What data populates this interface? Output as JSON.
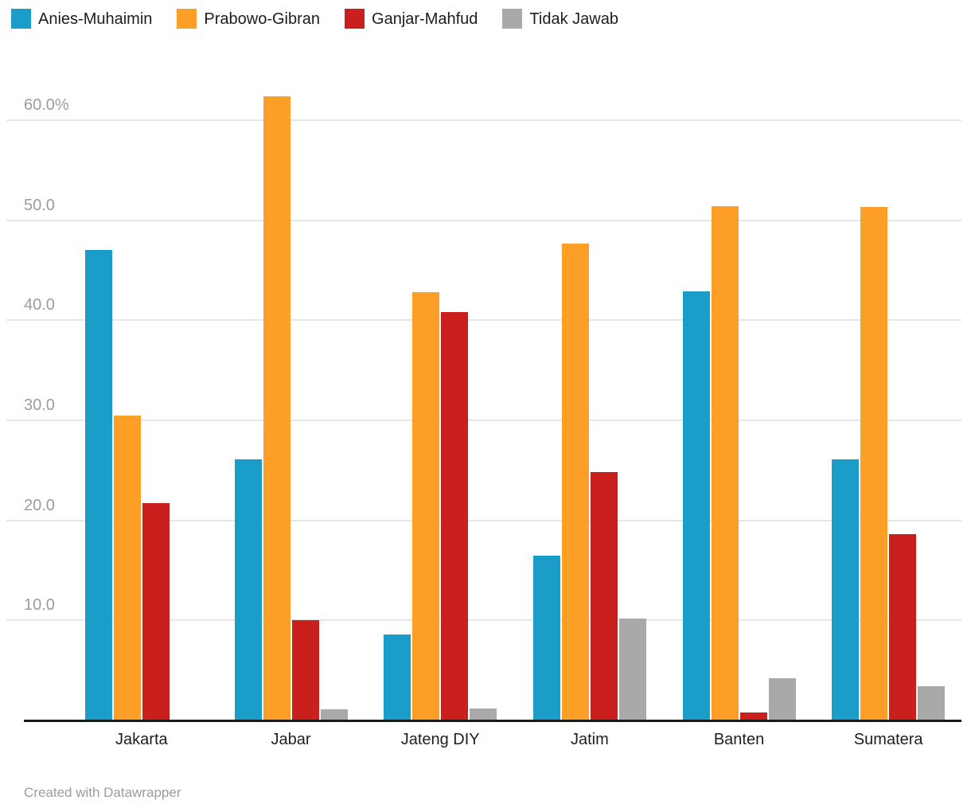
{
  "footer": {
    "credit": "Created with Datawrapper"
  },
  "chart_data": {
    "type": "bar",
    "grouped": true,
    "title": "",
    "xlabel": "",
    "ylabel": "",
    "legend_position": "top",
    "grid": true,
    "ylim": [
      0,
      62.85
    ],
    "y_ticks": [
      {
        "value": 10,
        "label": "10.0"
      },
      {
        "value": 20,
        "label": "20.0"
      },
      {
        "value": 30,
        "label": "30.0"
      },
      {
        "value": 40,
        "label": "40.0"
      },
      {
        "value": 50,
        "label": "50.0"
      },
      {
        "value": 60,
        "label": "60.0%"
      }
    ],
    "categories": [
      "Jakarta",
      "Jabar",
      "Jateng DIY",
      "Jatim",
      "Banten",
      "Sumatera"
    ],
    "series": [
      {
        "name": "Anies-Muhaimin",
        "color": "#1A9DC9",
        "values": [
          47.0,
          26.1,
          8.6,
          16.5,
          42.9,
          26.1
        ]
      },
      {
        "name": "Prabowo-Gibran",
        "color": "#FD9E27",
        "values": [
          30.5,
          62.4,
          42.8,
          47.7,
          51.4,
          51.3
        ]
      },
      {
        "name": "Ganjar-Mahfud",
        "color": "#C9201D",
        "values": [
          21.7,
          10.0,
          40.8,
          24.8,
          0.8,
          18.6
        ]
      },
      {
        "name": "Tidak Jawab",
        "color": "#A9A9A9",
        "values": [
          0,
          1.1,
          1.2,
          10.2,
          4.2,
          3.4
        ]
      }
    ],
    "axis_colors": {
      "gridline": "#e7e7e7",
      "baseline": "#1a1a1a",
      "tick_label": "#9c9c9c"
    }
  }
}
